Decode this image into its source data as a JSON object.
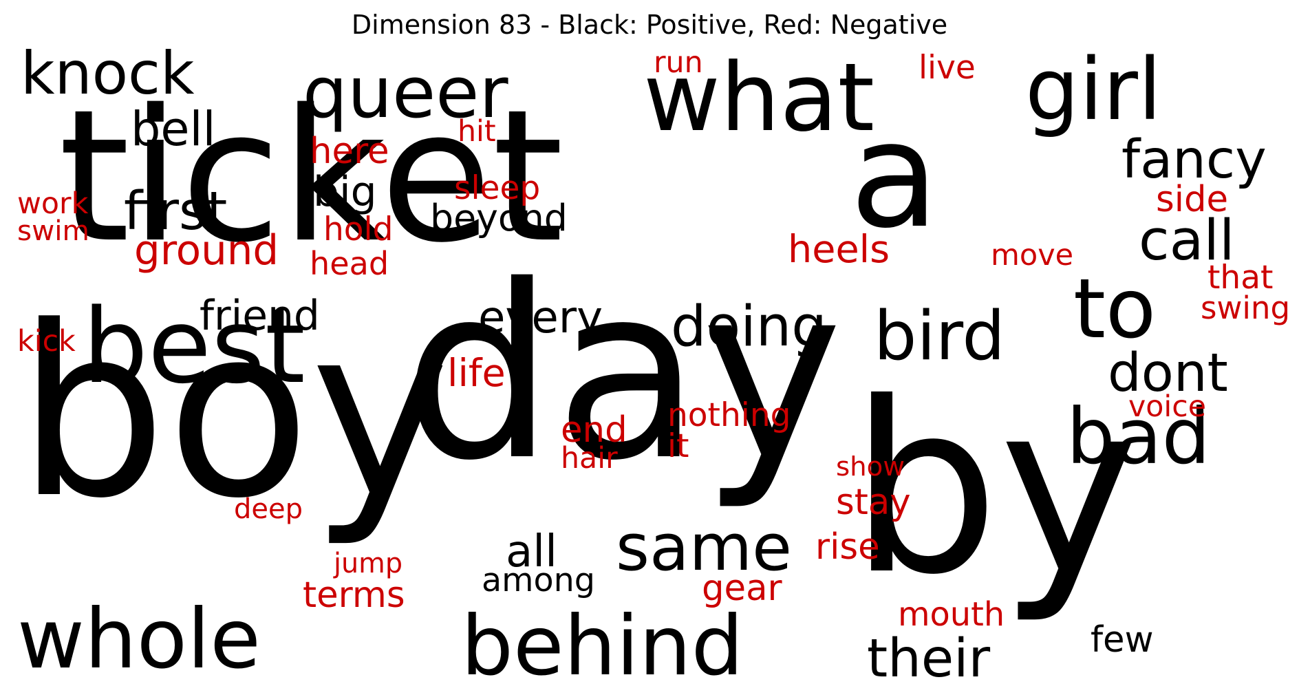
{
  "title": "Dimension 83 - Black: Positive, Red: Negative",
  "colors": {
    "positive": "#000000",
    "negative": "#cc0000",
    "background": "#ffffff"
  },
  "words": [
    {
      "text": "ticket",
      "polarity": "positive"
    },
    {
      "text": "a",
      "polarity": "positive"
    },
    {
      "text": "boy",
      "polarity": "positive"
    },
    {
      "text": "day",
      "polarity": "positive"
    },
    {
      "text": "by",
      "polarity": "positive"
    },
    {
      "text": "best",
      "polarity": "positive"
    },
    {
      "text": "what",
      "polarity": "positive"
    },
    {
      "text": "girl",
      "polarity": "positive"
    },
    {
      "text": "knock",
      "polarity": "positive"
    },
    {
      "text": "queer",
      "polarity": "positive"
    },
    {
      "text": "to",
      "polarity": "positive"
    },
    {
      "text": "bird",
      "polarity": "positive"
    },
    {
      "text": "whole",
      "polarity": "positive"
    },
    {
      "text": "behind",
      "polarity": "positive"
    },
    {
      "text": "bad",
      "polarity": "positive"
    },
    {
      "text": "same",
      "polarity": "positive"
    },
    {
      "text": "doing",
      "polarity": "positive"
    },
    {
      "text": "fancy",
      "polarity": "positive"
    },
    {
      "text": "first",
      "polarity": "positive"
    },
    {
      "text": "call",
      "polarity": "positive"
    },
    {
      "text": "dont",
      "polarity": "positive"
    },
    {
      "text": "their",
      "polarity": "positive"
    },
    {
      "text": "every",
      "polarity": "positive"
    },
    {
      "text": "bell",
      "polarity": "positive"
    },
    {
      "text": "all",
      "polarity": "positive"
    },
    {
      "text": "beyond",
      "polarity": "positive"
    },
    {
      "text": "friend",
      "polarity": "positive"
    },
    {
      "text": "big",
      "polarity": "positive"
    },
    {
      "text": "among",
      "polarity": "positive"
    },
    {
      "text": "few",
      "polarity": "positive"
    },
    {
      "text": "ground",
      "polarity": "negative"
    },
    {
      "text": "heels",
      "polarity": "negative"
    },
    {
      "text": "life",
      "polarity": "negative"
    },
    {
      "text": "end",
      "polarity": "negative"
    },
    {
      "text": "stay",
      "polarity": "negative"
    },
    {
      "text": "terms",
      "polarity": "negative"
    },
    {
      "text": "rise",
      "polarity": "negative"
    },
    {
      "text": "mouth",
      "polarity": "negative"
    },
    {
      "text": "gear",
      "polarity": "negative"
    },
    {
      "text": "here",
      "polarity": "negative"
    },
    {
      "text": "live",
      "polarity": "negative"
    },
    {
      "text": "side",
      "polarity": "negative"
    },
    {
      "text": "head",
      "polarity": "negative"
    },
    {
      "text": "sleep",
      "polarity": "negative"
    },
    {
      "text": "move",
      "polarity": "negative"
    },
    {
      "text": "nothing",
      "polarity": "negative"
    },
    {
      "text": "voice",
      "polarity": "negative"
    },
    {
      "text": "hold",
      "polarity": "negative"
    },
    {
      "text": "run",
      "polarity": "negative"
    },
    {
      "text": "hit",
      "polarity": "negative"
    },
    {
      "text": "work",
      "polarity": "negative"
    },
    {
      "text": "swim",
      "polarity": "negative"
    },
    {
      "text": "kick",
      "polarity": "negative"
    },
    {
      "text": "that",
      "polarity": "negative"
    },
    {
      "text": "swing",
      "polarity": "negative"
    },
    {
      "text": "hair",
      "polarity": "negative"
    },
    {
      "text": "it",
      "polarity": "negative"
    },
    {
      "text": "show",
      "polarity": "negative"
    },
    {
      "text": "deep",
      "polarity": "negative"
    },
    {
      "text": "jump",
      "polarity": "negative"
    }
  ]
}
